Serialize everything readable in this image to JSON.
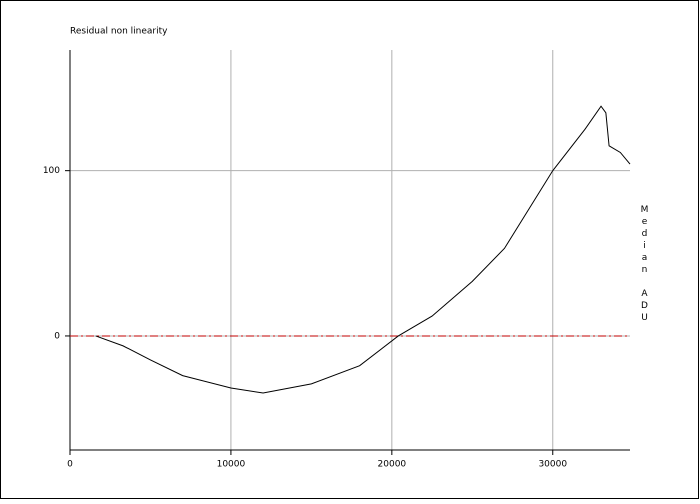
{
  "chart_data": {
    "type": "line",
    "title": "Residual non linearity",
    "y_label": "Median ADU",
    "x": [
      1600,
      3300,
      5000,
      7000,
      10000,
      12000,
      15000,
      18000,
      20400,
      22500,
      25000,
      27000,
      30000,
      32000,
      33000,
      33300,
      33500,
      34200,
      34800
    ],
    "series": [
      {
        "color": "#000000",
        "values": [
          0,
          -6,
          -14.5,
          -24,
          -31.5,
          -34.5,
          -29,
          -18,
          0,
          12,
          33,
          53,
          100,
          125,
          139,
          135,
          115,
          111,
          104
        ]
      }
    ],
    "xlim": [
      0,
      34800
    ],
    "ylim": [
      -69,
      173
    ],
    "xticks": [
      0,
      10000,
      20000,
      30000
    ],
    "yticks": [
      0,
      100
    ],
    "grid": true,
    "reference_line": {
      "value": 0,
      "color": "#c00000"
    }
  }
}
